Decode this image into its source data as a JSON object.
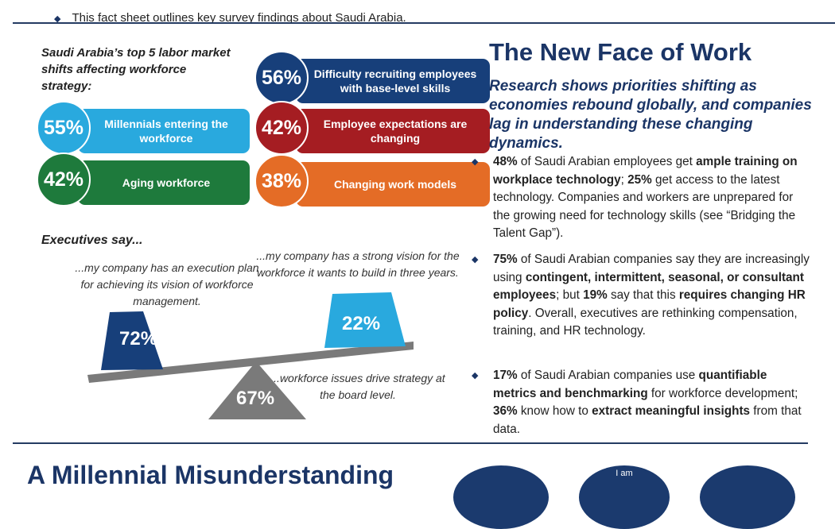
{
  "intro": "This fact sheet outlines key survey findings about Saudi Arabia.",
  "shifts": {
    "heading": "Saudi Arabia’s top 5 labor market shifts affecting workforce strategy:",
    "items": [
      {
        "pct": "55%",
        "label": "Millennials entering the workforce",
        "color": "#29a9de"
      },
      {
        "pct": "42%",
        "label": "Aging workforce",
        "color": "#1e7a3c"
      },
      {
        "pct": "56%",
        "label": "Difficulty recruiting employees with base-level skills",
        "color": "#173f7a"
      },
      {
        "pct": "42%",
        "label": "Employee expectations are changing",
        "color": "#a51d22"
      },
      {
        "pct": "38%",
        "label": "Changing work models",
        "color": "#e46c26"
      }
    ]
  },
  "executives": {
    "heading": "Executives say...",
    "left": {
      "pct": "72%",
      "quote": "...my company has an execution plan for achieving its vision of workforce management."
    },
    "right": {
      "pct": "22%",
      "quote": "...my company has a strong vision for the workforce it wants to build in three years."
    },
    "center": {
      "pct": "67%",
      "quote": "...workforce issues drive strategy at the board level."
    }
  },
  "right": {
    "title": "The New Face of Work",
    "subtitle": "Research shows priorities shifting as economies rebound globally, and companies lag in understanding these changing dynamics.",
    "bullets": [
      [
        {
          "t": "48%",
          "b": true
        },
        {
          "t": " of Saudi Arabian employees get "
        },
        {
          "t": "ample training on workplace technology",
          "b": true
        },
        {
          "t": "; "
        },
        {
          "t": "25%",
          "b": true
        },
        {
          "t": " get access to the latest technology. Companies and workers are unprepared for the growing need for technology skills (see “Bridging the Talent Gap”)."
        }
      ],
      [
        {
          "t": "75%",
          "b": true
        },
        {
          "t": " of Saudi Arabian companies say they are increasingly using "
        },
        {
          "t": "contingent, intermittent, seasonal, or consultant employees",
          "b": true
        },
        {
          "t": "; but "
        },
        {
          "t": "19%",
          "b": true
        },
        {
          "t": " say that this "
        },
        {
          "t": "requires changing HR policy",
          "b": true
        },
        {
          "t": ". Overall, executives are rethinking compensation, training, and HR technology."
        }
      ],
      [
        {
          "t": "17%",
          "b": true
        },
        {
          "t": " of Saudi Arabian companies use "
        },
        {
          "t": "quantifiable metrics and benchmarking",
          "b": true
        },
        {
          "t": " for workforce development; "
        },
        {
          "t": "36%",
          "b": true
        },
        {
          "t": " know how to "
        },
        {
          "t": "extract meaningful insights",
          "b": true
        },
        {
          "t": " from that data."
        }
      ]
    ]
  },
  "bottom": {
    "heading": "A Millennial Misunderstanding",
    "circle_text": "I am"
  }
}
